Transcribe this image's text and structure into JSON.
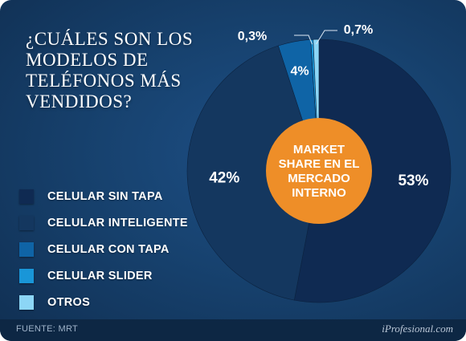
{
  "title": "¿CUÁLES SON LOS\nMODELOS DE\nTELÉFONOS MÁS\nVENDIDOS?",
  "center_label": [
    "MARKET",
    "SHARE EN EL",
    "MERCADO",
    "INTERNO"
  ],
  "footer": {
    "source": "FUENTE:  MRT",
    "brand": "iProfesional.com"
  },
  "colors": {
    "center": "#ee8e28",
    "slices": [
      "#0f2a52",
      "#14375f",
      "#0f64a6",
      "#1996d8",
      "#8cd6f6"
    ]
  },
  "chart_data": {
    "type": "pie",
    "title": "¿CUÁLES SON LOS MODELOS DE TELÉFONOS MÁS VENDIDOS?",
    "categories": [
      "CELULAR SIN TAPA",
      "CELULAR INTELIGENTE",
      "CELULAR CON TAPA",
      "CELULAR SLIDER",
      "OTROS"
    ],
    "values": [
      53,
      42,
      4,
      0.3,
      0.7
    ],
    "data_labels": [
      "53%",
      "42%",
      "4%",
      "0,3%",
      "0,7%"
    ],
    "start_angle_deg": 0,
    "direction": "clockwise-from-top",
    "legend": "left"
  }
}
